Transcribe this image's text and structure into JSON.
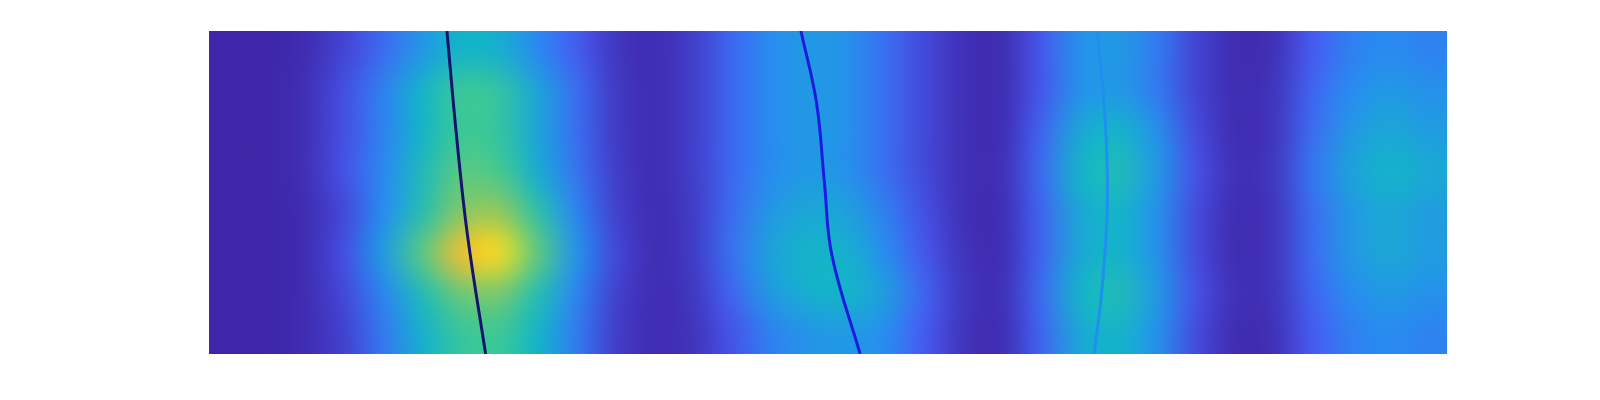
{
  "chart_data": {
    "type": "heatmap",
    "tick_labels": false,
    "xlim": [
      0,
      32
    ],
    "ylim": [
      0,
      8
    ],
    "zlim": [
      0,
      1
    ],
    "cells": [
      [
        0,
        0,
        0.02,
        0.09,
        0.2,
        0.34,
        0.45,
        0.43,
        0.29,
        0.16,
        0.05,
        0.02,
        0.07,
        0.19,
        0.3,
        0.35,
        0.32,
        0.21,
        0.1,
        0.03,
        0.02,
        0.14,
        0.32,
        0.35,
        0.25,
        0.09,
        0.02,
        0.03,
        0.15,
        0.26,
        0.3,
        0.27
      ],
      [
        0,
        0,
        0.03,
        0.12,
        0.27,
        0.45,
        0.6,
        0.57,
        0.39,
        0.21,
        0.06,
        0.02,
        0.07,
        0.19,
        0.3,
        0.35,
        0.32,
        0.21,
        0.1,
        0.03,
        0.02,
        0.14,
        0.32,
        0.35,
        0.25,
        0.09,
        0.02,
        0.04,
        0.18,
        0.3,
        0.35,
        0.32
      ],
      [
        0,
        0,
        0.03,
        0.12,
        0.27,
        0.45,
        0.6,
        0.57,
        0.39,
        0.21,
        0.06,
        0.02,
        0.07,
        0.19,
        0.3,
        0.35,
        0.32,
        0.21,
        0.1,
        0.03,
        0.02,
        0.18,
        0.4,
        0.45,
        0.32,
        0.11,
        0.02,
        0.04,
        0.2,
        0.34,
        0.4,
        0.36
      ],
      [
        0,
        0,
        0.03,
        0.13,
        0.29,
        0.49,
        0.65,
        0.62,
        0.42,
        0.23,
        0.07,
        0.02,
        0.07,
        0.19,
        0.3,
        0.35,
        0.32,
        0.21,
        0.1,
        0.03,
        0.03,
        0.2,
        0.45,
        0.5,
        0.35,
        0.13,
        0.03,
        0.05,
        0.23,
        0.38,
        0.45,
        0.41
      ],
      [
        0,
        0,
        0.02,
        0.1,
        0.3,
        0.52,
        0.72,
        0.75,
        0.55,
        0.28,
        0.08,
        0.02,
        0.06,
        0.2,
        0.34,
        0.4,
        0.38,
        0.26,
        0.12,
        0.03,
        0.02,
        0.18,
        0.4,
        0.45,
        0.32,
        0.11,
        0.02,
        0.04,
        0.2,
        0.34,
        0.4,
        0.36
      ],
      [
        0,
        0,
        0.02,
        0.12,
        0.36,
        0.65,
        0.9,
        0.95,
        0.66,
        0.33,
        0.1,
        0.02,
        0.06,
        0.22,
        0.38,
        0.45,
        0.43,
        0.3,
        0.14,
        0.04,
        0.02,
        0.18,
        0.4,
        0.45,
        0.32,
        0.11,
        0.02,
        0.04,
        0.2,
        0.34,
        0.4,
        0.36
      ],
      [
        0,
        0,
        0.02,
        0.1,
        0.28,
        0.5,
        0.68,
        0.7,
        0.52,
        0.28,
        0.08,
        0.02,
        0.05,
        0.18,
        0.35,
        0.43,
        0.45,
        0.36,
        0.18,
        0.05,
        0.03,
        0.2,
        0.45,
        0.5,
        0.35,
        0.13,
        0.03,
        0.04,
        0.18,
        0.3,
        0.35,
        0.32
      ],
      [
        0,
        0,
        0.02,
        0.08,
        0.24,
        0.43,
        0.58,
        0.6,
        0.45,
        0.25,
        0.07,
        0.02,
        0.04,
        0.13,
        0.26,
        0.33,
        0.35,
        0.3,
        0.15,
        0.04,
        0.02,
        0.18,
        0.4,
        0.45,
        0.32,
        0.11,
        0.02,
        0.03,
        0.15,
        0.26,
        0.3,
        0.27
      ]
    ],
    "series": [
      {
        "type": "line",
        "color": "#14146e",
        "x": [
          6.15,
          6.39,
          6.68,
          7.15
        ],
        "values": [
          8,
          5.48,
          2.95,
          0
        ]
      },
      {
        "type": "line",
        "color": "#1c1ce0",
        "x": [
          15.3,
          15.7,
          15.91,
          16.1,
          16.83
        ],
        "values": [
          8,
          6.24,
          4.22,
          2.45,
          0
        ]
      },
      {
        "type": "line",
        "color": "#1e90f0",
        "x": [
          22.96,
          23.17,
          23.22,
          23.09,
          22.88
        ],
        "values": [
          8,
          5.73,
          3.71,
          1.69,
          0
        ]
      }
    ]
  }
}
